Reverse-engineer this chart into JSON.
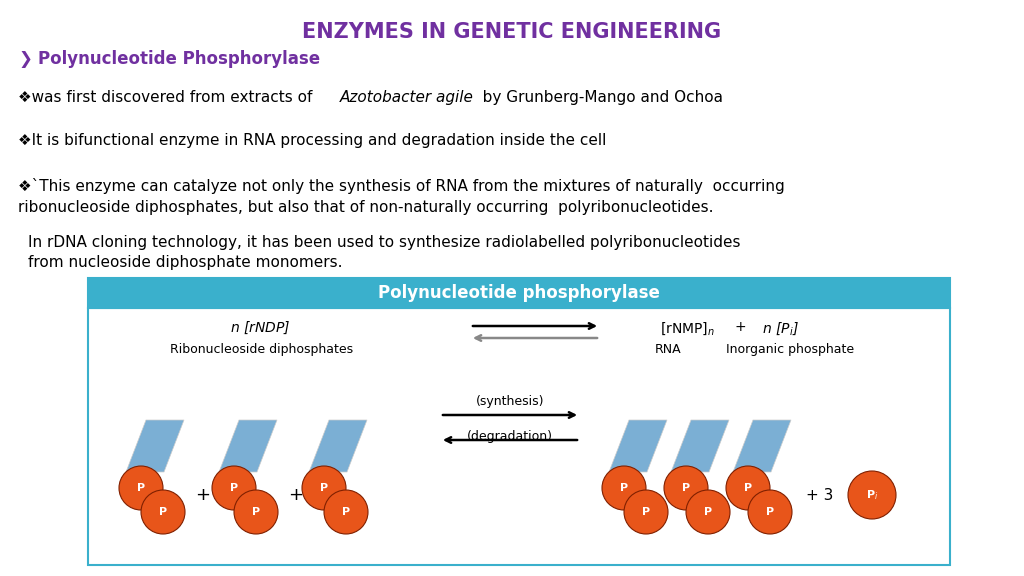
{
  "title": "ENZYMES IN GENETIC ENGINEERING",
  "title_color": "#7030A0",
  "title_fontsize": 15,
  "subtitle": "Polynucleotide Phosphorylase",
  "subtitle_color": "#7030A0",
  "subtitle_fontsize": 12,
  "box_header": "Polynucleotide phosphorylase",
  "box_header_bg": "#3AB0CC",
  "box_header_text": "#FFFFFF",
  "box_bg": "#FFFFFF",
  "box_border": "#3AB0CC",
  "text_color": "#000000",
  "bullet_fontsize": 11,
  "orange_color": "#E8551A",
  "blue_rect_color": "#7BAFD4",
  "background_color": "#FFFFFF"
}
